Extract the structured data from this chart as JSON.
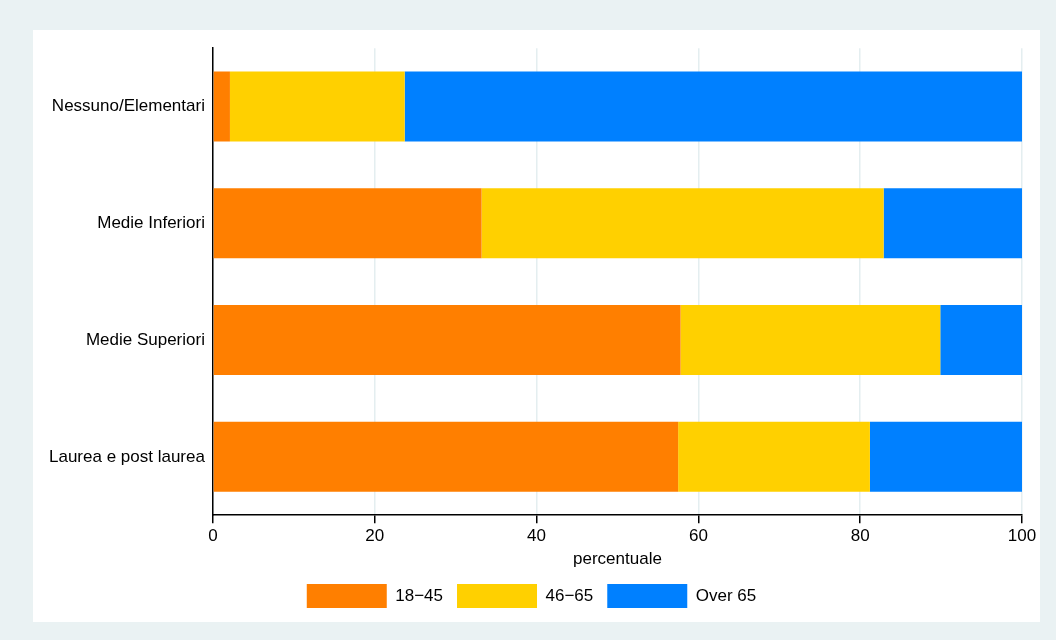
{
  "chart_data": {
    "type": "bar",
    "orientation": "horizontal",
    "stacked": true,
    "categories": [
      "Nessuno/Elementari",
      "Medie Inferiori",
      "Medie Superiori",
      "Laurea e post laurea"
    ],
    "series": [
      {
        "name": "18−45",
        "color": "#ff7f00",
        "values": [
          2.1,
          33.2,
          57.8,
          57.5
        ]
      },
      {
        "name": "46−65",
        "color": "#ffd000",
        "values": [
          21.6,
          49.7,
          32.1,
          23.7
        ]
      },
      {
        "name": "Over 65",
        "color": "#0080ff",
        "values": [
          76.3,
          17.1,
          10.1,
          18.8
        ]
      }
    ],
    "xlabel": "percentuale",
    "xlim": [
      0,
      100
    ],
    "xticks": [
      0,
      20,
      40,
      60,
      80,
      100
    ],
    "grid": "x",
    "legend": "bottom"
  }
}
